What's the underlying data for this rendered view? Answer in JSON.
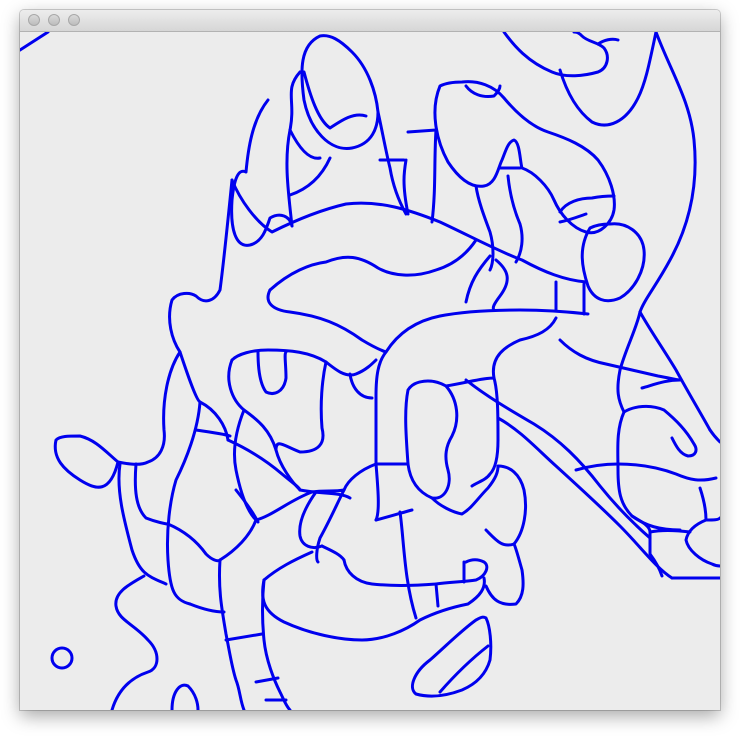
{
  "window": {
    "title": "",
    "buttons": [
      "close",
      "minimize",
      "zoom"
    ]
  },
  "drawing": {
    "stroke_color": "#0000ee",
    "background_color": "#ececec"
  }
}
